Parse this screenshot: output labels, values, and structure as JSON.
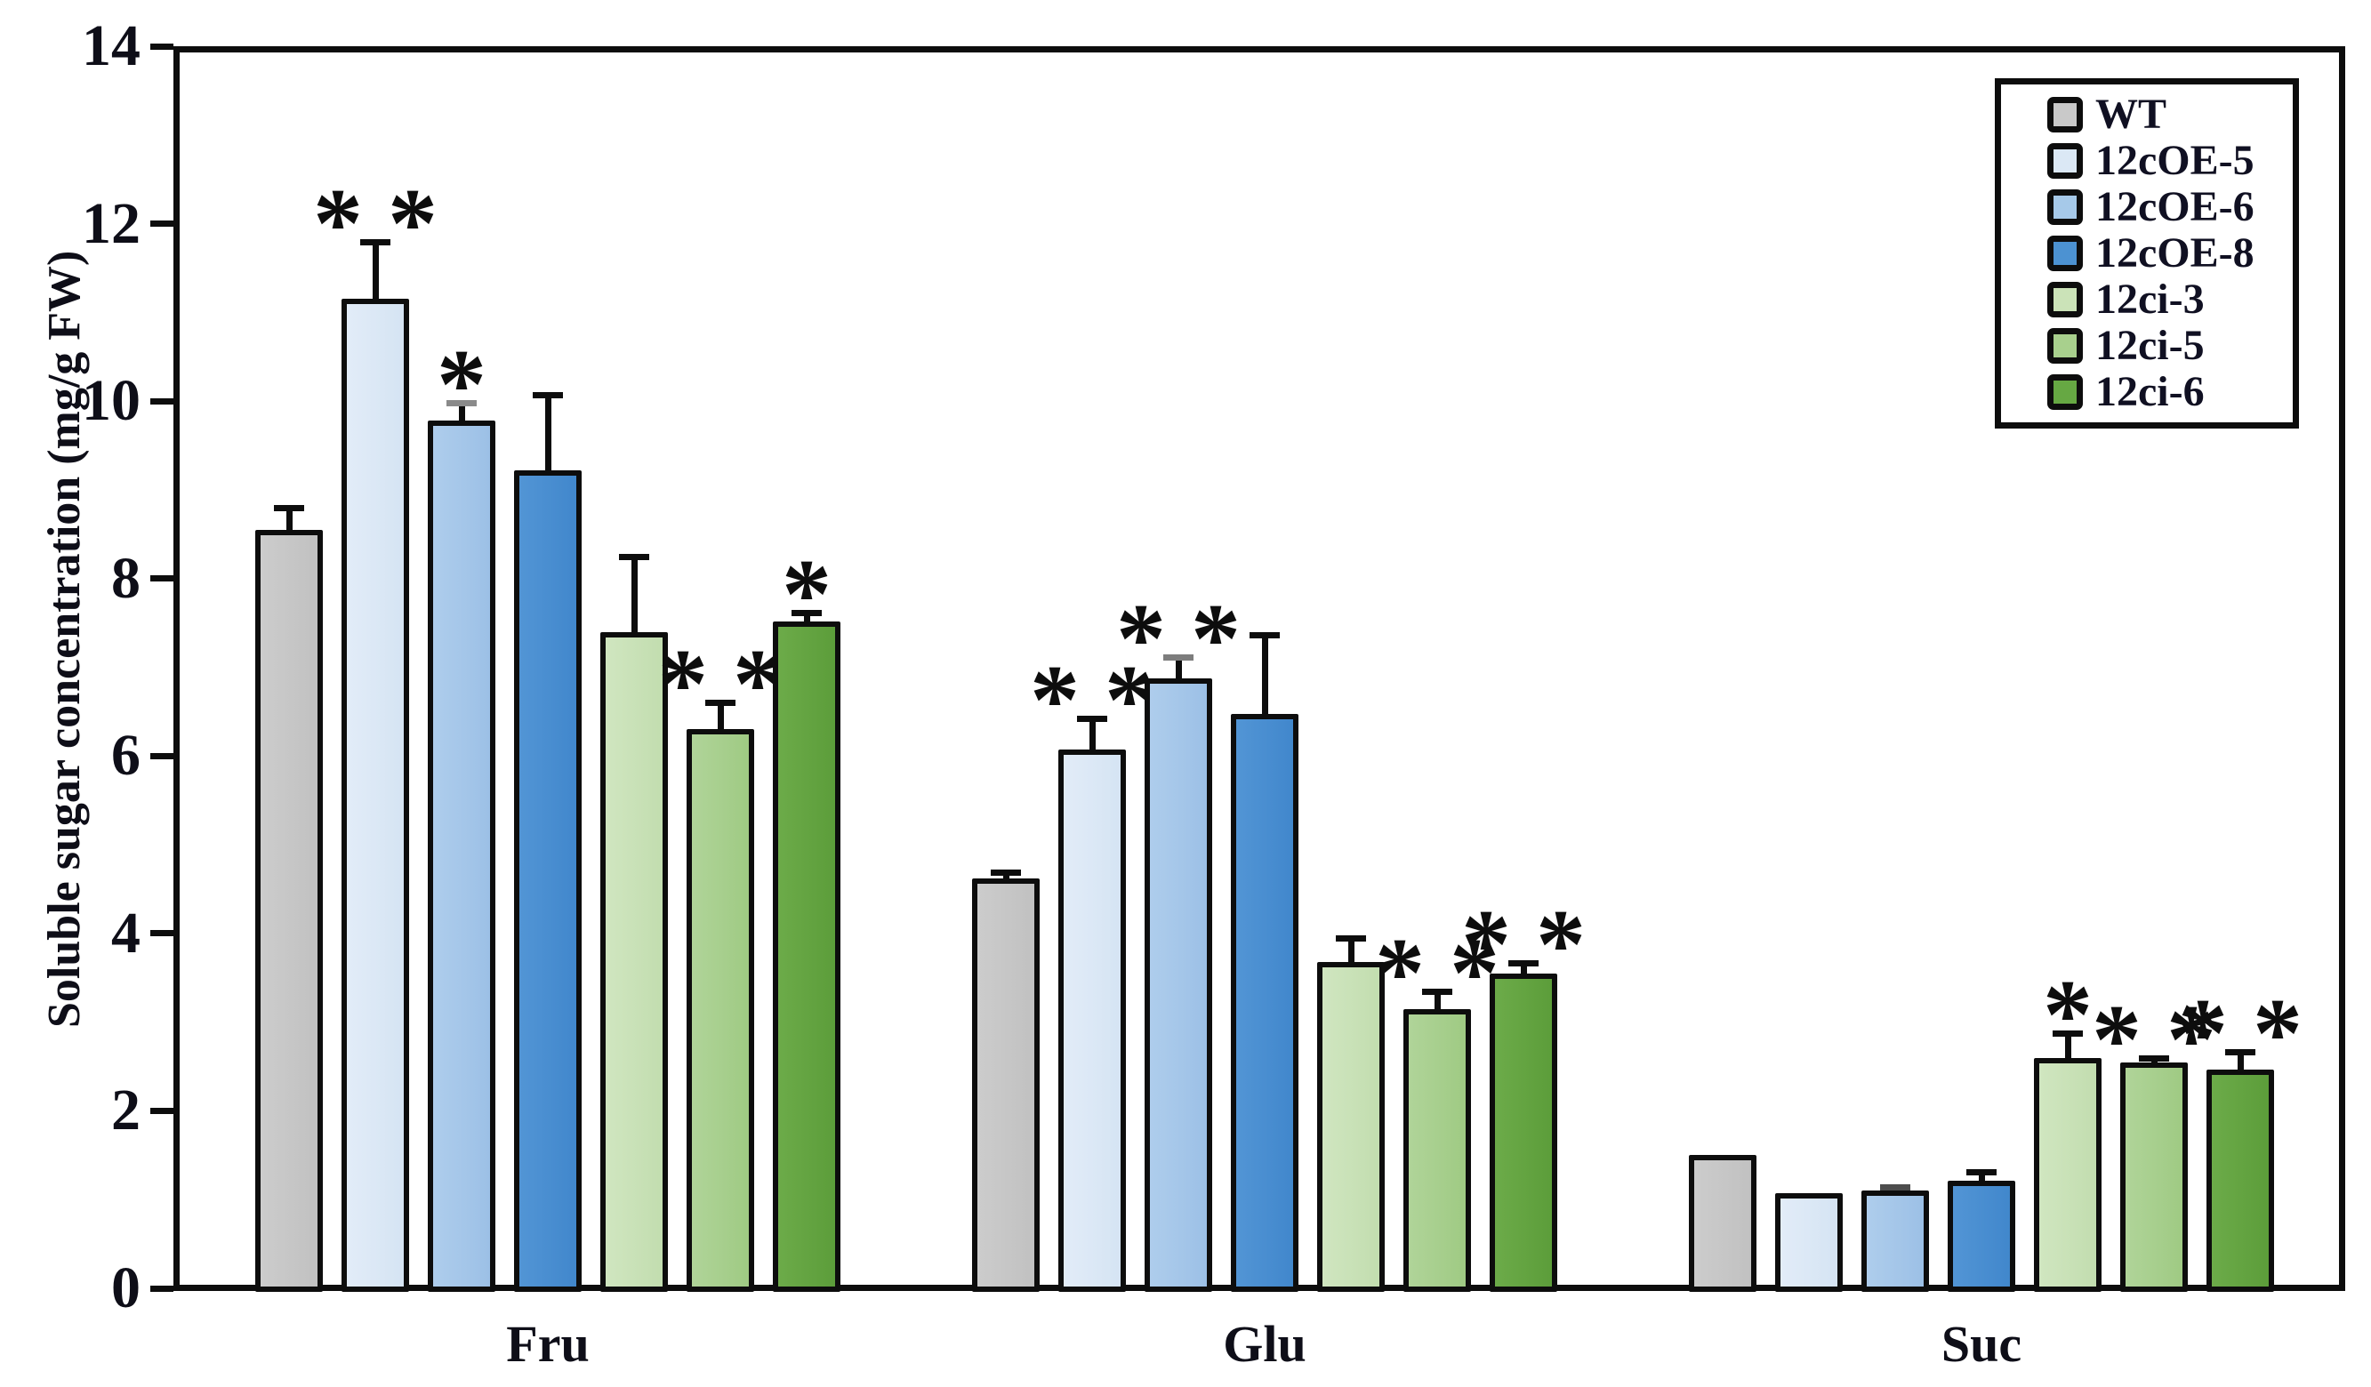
{
  "figure": {
    "background": "#ffffff",
    "axis_color": "#0d0d0d",
    "text_color": "#0e0e18"
  },
  "chart_data": {
    "type": "bar",
    "title": "",
    "xlabel": "",
    "ylabel": "Soluble sugar concentration (mg/g FW)",
    "ylim": [
      0,
      14
    ],
    "yticks": [
      0,
      2,
      4,
      6,
      8,
      10,
      12,
      14
    ],
    "grid": false,
    "legend_position": "top-right",
    "categories": [
      "Fru",
      "Glu",
      "Suc"
    ],
    "series": [
      {
        "name": "WT",
        "color": "#cccccc",
        "color2": "#c1c1c1",
        "legend_color": "#c9c9c9",
        "values": [
          8.55,
          4.62,
          1.5
        ],
        "errors": [
          0.25,
          0.07,
          0
        ],
        "sig": [
          "",
          "",
          ""
        ]
      },
      {
        "name": "12cOE-5",
        "color": "#e2ecf8",
        "color2": "#d5e4f3",
        "legend_color": "#dbe8f5",
        "values": [
          11.15,
          6.07,
          1.07
        ],
        "errors": [
          0.65,
          0.35,
          0
        ],
        "sig": [
          "**",
          "**",
          ""
        ]
      },
      {
        "name": "12cOE-6",
        "color": "#aecdec",
        "color2": "#9cc0e6",
        "legend_color": "#a6c9e9",
        "values": [
          9.78,
          6.87,
          1.1
        ],
        "errors": [
          0.2,
          0.25,
          0.04
        ],
        "cap_colors": [
          "#8a8a8a",
          "#7d7d7d",
          "#4d4d4d"
        ],
        "sig": [
          "*",
          "**",
          ""
        ]
      },
      {
        "name": "12cOE-8",
        "color": "#5295d5",
        "color2": "#4187cc",
        "legend_color": "#4c92d2",
        "values": [
          9.22,
          6.47,
          1.21
        ],
        "errors": [
          0.85,
          0.9,
          0.1
        ],
        "sig": [
          "",
          "",
          ""
        ]
      },
      {
        "name": "12ci-3",
        "color": "#d0e6c0",
        "color2": "#c2ddaf",
        "legend_color": "#cbe3b8",
        "values": [
          7.4,
          3.68,
          2.6
        ],
        "errors": [
          0.85,
          0.27,
          0.28
        ],
        "sig": [
          "",
          "",
          "*"
        ]
      },
      {
        "name": "12ci-5",
        "color": "#b0d499",
        "color2": "#9fca83",
        "legend_color": "#a8d08d",
        "values": [
          6.3,
          3.15,
          2.55
        ],
        "errors": [
          0.3,
          0.2,
          0.05
        ],
        "sig": [
          "**",
          "**",
          "**"
        ]
      },
      {
        "name": "12ci-6",
        "color": "#6cab49",
        "color2": "#5c9d3a",
        "legend_color": "#66a843",
        "values": [
          7.52,
          3.55,
          2.47
        ],
        "errors": [
          0.1,
          0.12,
          0.2
        ],
        "sig": [
          "*",
          "**",
          "**"
        ]
      }
    ]
  }
}
